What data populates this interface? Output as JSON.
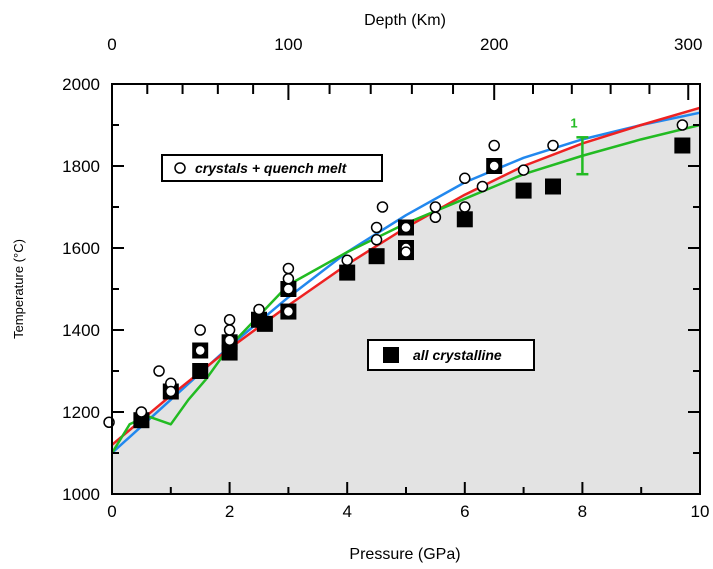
{
  "chart_data": {
    "type": "scatter",
    "xlabel": "Pressure  (GPa)",
    "ylabel": "Temperature  (°C)",
    "top_xlabel": "Depth (Km)",
    "xlim": [
      0,
      10
    ],
    "ylim": [
      1000,
      2000
    ],
    "x_ticks": [
      0,
      2,
      4,
      6,
      8,
      10
    ],
    "y_ticks": [
      1000,
      1200,
      1400,
      1600,
      1800,
      2000
    ],
    "top_axis": {
      "ticks": [
        {
          "label": "0",
          "pressure": 0
        },
        {
          "label": "100",
          "pressure": 3.0
        },
        {
          "label": "200",
          "pressure": 6.5
        },
        {
          "label": "300",
          "pressure": 9.8
        }
      ]
    },
    "grid": false,
    "legend": [
      {
        "label": "crystals + quench melt",
        "marker": "open-circle"
      },
      {
        "label": "all crystalline",
        "marker": "filled-square"
      }
    ],
    "error_bar": {
      "label": "1",
      "x": 8.0,
      "y": 1825,
      "low": 1780,
      "high": 1870,
      "color": "#22bb22"
    },
    "series": [
      {
        "name": "crystals + quench melt",
        "marker": "open-circle",
        "points": [
          [
            -0.05,
            1175
          ],
          [
            0.5,
            1200
          ],
          [
            0.8,
            1300
          ],
          [
            1.0,
            1270
          ],
          [
            1.0,
            1250
          ],
          [
            1.5,
            1400
          ],
          [
            1.5,
            1350
          ],
          [
            2.0,
            1425
          ],
          [
            2.0,
            1400
          ],
          [
            2.0,
            1375
          ],
          [
            2.5,
            1450
          ],
          [
            3.0,
            1550
          ],
          [
            3.0,
            1525
          ],
          [
            3.0,
            1500
          ],
          [
            3.0,
            1445
          ],
          [
            4.0,
            1570
          ],
          [
            4.5,
            1650
          ],
          [
            4.5,
            1620
          ],
          [
            4.6,
            1700
          ],
          [
            5.0,
            1650
          ],
          [
            5.0,
            1600
          ],
          [
            5.0,
            1590
          ],
          [
            5.5,
            1700
          ],
          [
            5.5,
            1675
          ],
          [
            6.0,
            1770
          ],
          [
            6.0,
            1700
          ],
          [
            6.3,
            1750
          ],
          [
            6.5,
            1850
          ],
          [
            6.5,
            1800
          ],
          [
            7.0,
            1790
          ],
          [
            7.5,
            1850
          ],
          [
            9.7,
            1900
          ]
        ]
      },
      {
        "name": "all crystalline",
        "marker": "filled-square",
        "points": [
          [
            0.5,
            1180
          ],
          [
            1.0,
            1250
          ],
          [
            1.5,
            1350
          ],
          [
            1.5,
            1300
          ],
          [
            2.0,
            1370
          ],
          [
            2.0,
            1345
          ],
          [
            2.5,
            1425
          ],
          [
            2.6,
            1415
          ],
          [
            3.0,
            1500
          ],
          [
            3.0,
            1445
          ],
          [
            4.0,
            1540
          ],
          [
            4.5,
            1580
          ],
          [
            5.0,
            1650
          ],
          [
            5.0,
            1600
          ],
          [
            5.0,
            1590
          ],
          [
            6.0,
            1670
          ],
          [
            6.5,
            1800
          ],
          [
            7.0,
            1740
          ],
          [
            7.5,
            1750
          ],
          [
            9.7,
            1850
          ]
        ]
      },
      {
        "name": "",
        "line_color": "#2288ee",
        "points": [
          [
            0,
            1100
          ],
          [
            1,
            1230
          ],
          [
            2,
            1360
          ],
          [
            3,
            1480
          ],
          [
            4,
            1590
          ],
          [
            5,
            1680
          ],
          [
            6,
            1760
          ],
          [
            7,
            1820
          ],
          [
            8,
            1865
          ],
          [
            9,
            1900
          ],
          [
            10,
            1930
          ]
        ]
      },
      {
        "name": "",
        "line_color": "#ee2222",
        "points": [
          [
            0,
            1120
          ],
          [
            1,
            1240
          ],
          [
            2,
            1355
          ],
          [
            3,
            1460
          ],
          [
            4,
            1560
          ],
          [
            5,
            1650
          ],
          [
            6,
            1730
          ],
          [
            7,
            1800
          ],
          [
            8,
            1855
          ],
          [
            9,
            1900
          ],
          [
            10,
            1942
          ]
        ]
      },
      {
        "name": "",
        "line_color": "#22bb22",
        "points": [
          [
            0,
            1100
          ],
          [
            0.3,
            1170
          ],
          [
            0.6,
            1190
          ],
          [
            0.8,
            1180
          ],
          [
            1.0,
            1170
          ],
          [
            1.3,
            1230
          ],
          [
            1.6,
            1280
          ],
          [
            2.0,
            1360
          ],
          [
            3.0,
            1510
          ],
          [
            4.0,
            1590
          ],
          [
            5.0,
            1660
          ],
          [
            6.0,
            1720
          ],
          [
            7.0,
            1780
          ],
          [
            8.0,
            1825
          ],
          [
            9.0,
            1865
          ],
          [
            10.0,
            1900
          ]
        ]
      }
    ]
  }
}
